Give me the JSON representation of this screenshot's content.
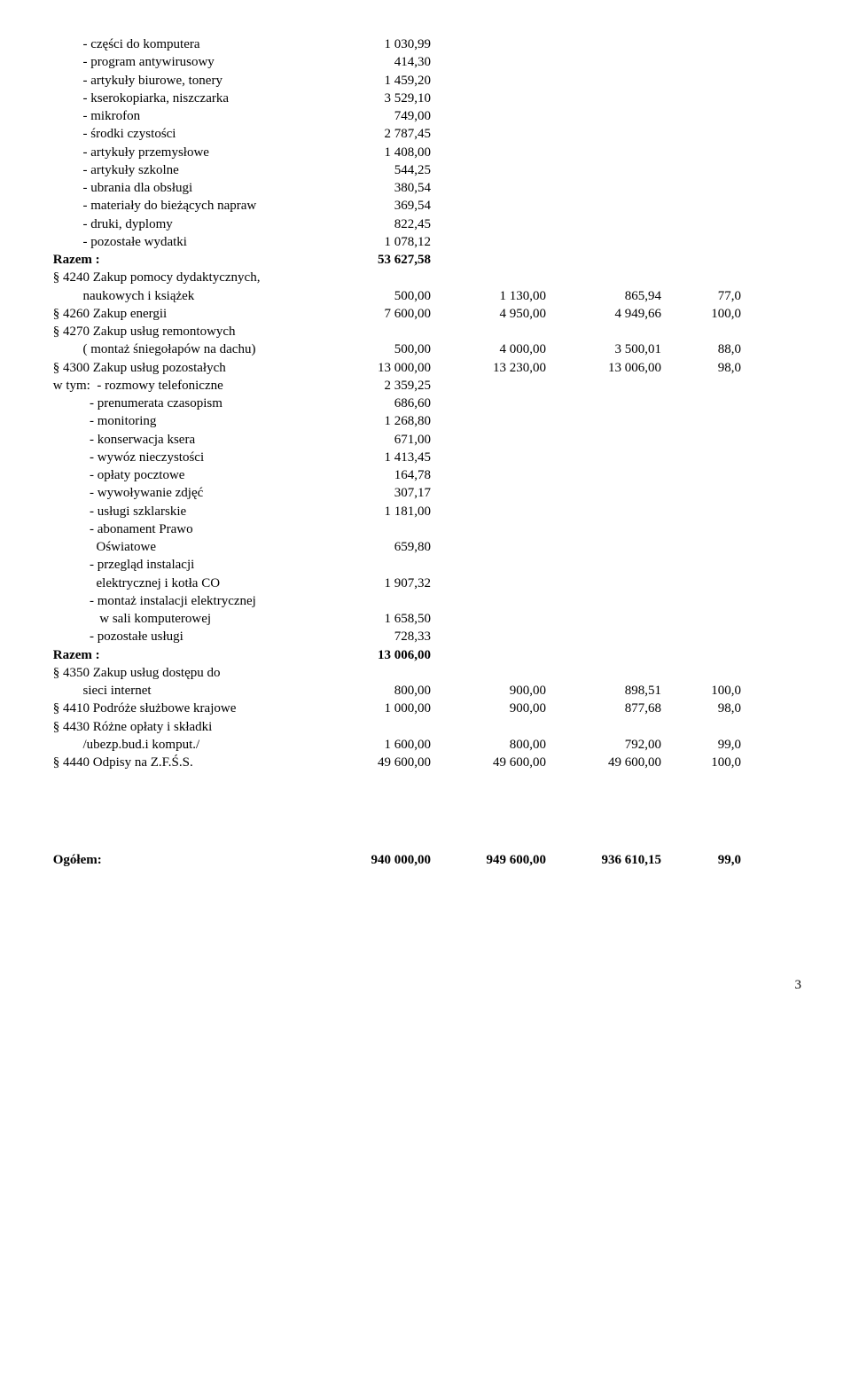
{
  "detail": {
    "items": [
      {
        "label": "          - części do komputera",
        "v": "1 030,99"
      },
      {
        "label": "          - program antywirusowy",
        "v": "414,30"
      },
      {
        "label": "          - artykuły biurowe, tonery",
        "v": "1 459,20"
      },
      {
        "label": "          - kserokopiarka, niszczarka",
        "v": "3 529,10"
      },
      {
        "label": "          - mikrofon",
        "v": "749,00"
      },
      {
        "label": "          - środki czystości",
        "v": "2 787,45"
      },
      {
        "label": "          - artykuły przemysłowe",
        "v": "1 408,00"
      },
      {
        "label": "          - artykuły szkolne",
        "v": "544,25"
      },
      {
        "label": "          - ubrania dla obsługi",
        "v": "380,54"
      },
      {
        "label": "          - materiały do bieżących napraw",
        "v": "369,54"
      },
      {
        "label": "          - druki, dyplomy",
        "v": "822,45"
      },
      {
        "label": "          - pozostałe wydatki",
        "v": "1 078,12"
      }
    ]
  },
  "razem1": {
    "label": " Razem :",
    "v": "53 627,58"
  },
  "s4240": {
    "header": " § 4240 Zakup pomocy dydaktycznych,",
    "label": "          naukowych i książek",
    "c1": "500,00",
    "c2": "1 130,00",
    "c3": "865,94",
    "c4": "77,0"
  },
  "s4260": {
    "label": " § 4260 Zakup energii",
    "c1": "7 600,00",
    "c2": "4 950,00",
    "c3": "4 949,66",
    "c4": "100,0"
  },
  "s4270": {
    "header": " § 4270 Zakup usług remontowych",
    "label": "          ( montaż śniegołapów na dachu)",
    "c1": "500,00",
    "c2": "4 000,00",
    "c3": "3 500,01",
    "c4": "88,0"
  },
  "s4300": {
    "label": " § 4300 Zakup usług pozostałych",
    "c1": "13 000,00",
    "c2": "13 230,00",
    "c3": "13 006,00",
    "c4": "98,0"
  },
  "wtym": [
    {
      "label": " w tym:  - rozmowy telefoniczne",
      "v": "2 359,25"
    },
    {
      "label": "            - prenumerata czasopism",
      "v": "686,60"
    },
    {
      "label": "            - monitoring",
      "v": "1 268,80"
    },
    {
      "label": "            - konserwacja ksera",
      "v": "671,00"
    },
    {
      "label": "            - wywóz nieczystości",
      "v": "1 413,45"
    },
    {
      "label": "            - opłaty pocztowe",
      "v": "164,78"
    },
    {
      "label": "            - wywoływanie zdjęć",
      "v": "307,17"
    },
    {
      "label": "            - usługi szklarskie",
      "v": "1 181,00"
    },
    {
      "label": "            - abonament Prawo",
      "v": ""
    },
    {
      "label": "              Oświatowe",
      "v": "659,80"
    },
    {
      "label": "            - przegląd instalacji",
      "v": ""
    },
    {
      "label": "              elektrycznej i kotła CO",
      "v": "1 907,32"
    },
    {
      "label": "            - montaż instalacji elektrycznej",
      "v": ""
    },
    {
      "label": "               w sali komputerowej",
      "v": "1 658,50"
    },
    {
      "label": "            - pozostałe usługi",
      "v": "728,33"
    }
  ],
  "razem2": {
    "label": " Razem :",
    "v": "13 006,00"
  },
  "s4350": {
    "header": " § 4350 Zakup usług dostępu do",
    "label": "          sieci internet",
    "c1": "800,00",
    "c2": "900,00",
    "c3": "898,51",
    "c4": "100,0"
  },
  "s4410": {
    "label": " § 4410 Podróże służbowe krajowe",
    "c1": "1 000,00",
    "c2": "900,00",
    "c3": "877,68",
    "c4": "98,0"
  },
  "s4430": {
    "header": " § 4430 Różne opłaty i składki",
    "label": "          /ubezp.bud.i komput./",
    "c1": "1 600,00",
    "c2": "800,00",
    "c3": "792,00",
    "c4": "99,0"
  },
  "s4440": {
    "label": " § 4440 Odpisy na Z.F.Ś.S.",
    "c1": "49 600,00",
    "c2": "49 600,00",
    "c3": "49 600,00",
    "c4": "100,0"
  },
  "ogolem": {
    "label": " Ogółem:",
    "c1": "940 000,00",
    "c2": "949 600,00",
    "c3": "936 610,15",
    "c4": "99,0"
  },
  "page": "3"
}
